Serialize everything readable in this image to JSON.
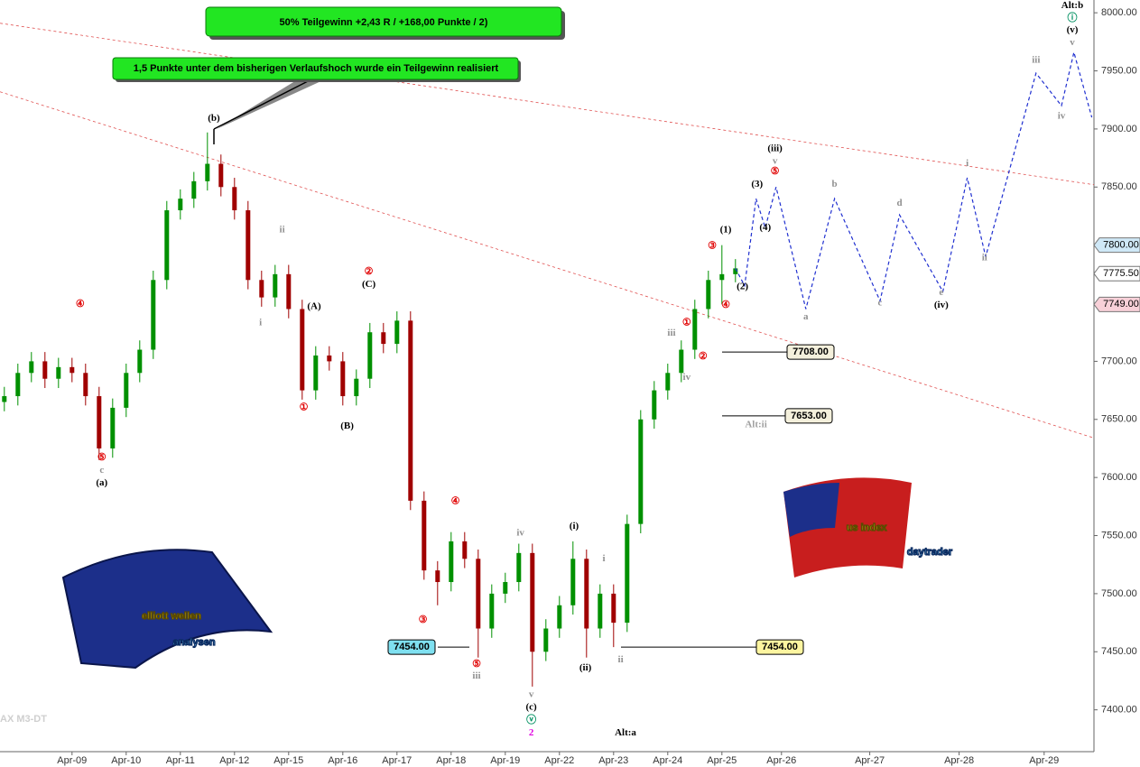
{
  "chart_data": {
    "type": "candlestick",
    "title": "50% Teilgewinn +2,43 R / +168,00 Punkte / 2)",
    "subtitle": "1,5 Punkte unter dem bisherigen Verlaufshoch wurde ein Teilgewinn realisiert",
    "watermark": "AX M3-DT",
    "logos": [
      {
        "lines": [
          "elliott wellen",
          "analysen"
        ]
      },
      {
        "lines": [
          "us index",
          "daytrader"
        ]
      }
    ],
    "xlim": [
      -1.33,
      18.87
    ],
    "xticks": [
      {
        "value": 0,
        "label": "Apr-09"
      },
      {
        "value": 1,
        "label": "Apr-10"
      },
      {
        "value": 2,
        "label": "Apr-11"
      },
      {
        "value": 3,
        "label": "Apr-12"
      },
      {
        "value": 4,
        "label": "Apr-15"
      },
      {
        "value": 5,
        "label": "Apr-16"
      },
      {
        "value": 6,
        "label": "Apr-17"
      },
      {
        "value": 7,
        "label": "Apr-18"
      },
      {
        "value": 8,
        "label": "Apr-19"
      },
      {
        "value": 9,
        "label": "Apr-22"
      },
      {
        "value": 10,
        "label": "Apr-23"
      },
      {
        "value": 11,
        "label": "Apr-24"
      },
      {
        "value": 12,
        "label": "Apr-25"
      },
      {
        "value": 13.1,
        "label": "Apr-26"
      },
      {
        "value": 14.73,
        "label": "Apr-27"
      },
      {
        "value": 16.38,
        "label": "Apr-28"
      },
      {
        "value": 17.95,
        "label": "Apr-29"
      }
    ],
    "ylim": [
      7364,
      8011
    ],
    "yticks": [
      {
        "value": 7400,
        "label": "7400.00"
      },
      {
        "value": 7450,
        "label": "7450.00"
      },
      {
        "value": 7500,
        "label": "7500.00"
      },
      {
        "value": 7550,
        "label": "7550.00"
      },
      {
        "value": 7600,
        "label": "7600.00"
      },
      {
        "value": 7650,
        "label": "7650.00"
      },
      {
        "value": 7700,
        "label": "7700.00"
      },
      {
        "value": 7750,
        "label": "7750.00"
      },
      {
        "value": 7800,
        "label": "7800.00"
      },
      {
        "value": 7850,
        "label": "7850.00"
      },
      {
        "value": 7900,
        "label": "7900.00"
      },
      {
        "value": 7950,
        "label": "7950.00"
      },
      {
        "value": 8000,
        "label": "8000.00"
      }
    ],
    "candles": {
      "up_color": "#009000",
      "down_color": "#a00000",
      "x": [
        -1.25,
        -1,
        -0.75,
        -0.5,
        -0.25,
        0,
        0.25,
        0.5,
        0.75,
        1,
        1.25,
        1.5,
        1.75,
        2,
        2.25,
        2.5,
        2.75,
        3,
        3.25,
        3.5,
        3.75,
        4,
        4.25,
        4.5,
        4.75,
        5,
        5.25,
        5.5,
        5.75,
        6,
        6.25,
        6.5,
        6.75,
        7,
        7.25,
        7.5,
        7.75,
        8,
        8.25,
        8.5,
        8.75,
        9,
        9.25,
        9.5,
        9.75,
        10,
        10.25,
        10.5,
        10.75,
        11,
        11.25,
        11.5,
        11.75,
        12,
        12.25
      ],
      "open": [
        7665,
        7670,
        7690,
        7700,
        7685,
        7695,
        7690,
        7670,
        7625,
        7660,
        7690,
        7710,
        7770,
        7830,
        7840,
        7855,
        7870,
        7850,
        7830,
        7770,
        7755,
        7775,
        7745,
        7675,
        7705,
        7700,
        7670,
        7685,
        7725,
        7715,
        7735,
        7580,
        7520,
        7510,
        7545,
        7530,
        7470,
        7500,
        7510,
        7535,
        7450,
        7470,
        7490,
        7530,
        7470,
        7500,
        7475,
        7560,
        7650,
        7675,
        7690,
        7710,
        7745,
        7770,
        7775
      ],
      "high": [
        7678,
        7698,
        7708,
        7708,
        7703,
        7703,
        7698,
        7678,
        7668,
        7698,
        7718,
        7778,
        7838,
        7848,
        7863,
        7897,
        7878,
        7858,
        7838,
        7778,
        7783,
        7783,
        7753,
        7713,
        7713,
        7708,
        7693,
        7733,
        7733,
        7743,
        7743,
        7588,
        7528,
        7553,
        7553,
        7538,
        7508,
        7518,
        7543,
        7543,
        7478,
        7498,
        7545,
        7538,
        7508,
        7508,
        7568,
        7658,
        7683,
        7698,
        7718,
        7753,
        7778,
        7800,
        7788
      ],
      "low": [
        7657,
        7662,
        7682,
        7677,
        7677,
        7682,
        7662,
        7615,
        7617,
        7652,
        7682,
        7702,
        7762,
        7822,
        7832,
        7847,
        7842,
        7822,
        7762,
        7747,
        7747,
        7737,
        7667,
        7667,
        7692,
        7662,
        7662,
        7677,
        7707,
        7707,
        7572,
        7512,
        7490,
        7502,
        7522,
        7445,
        7462,
        7492,
        7502,
        7420,
        7442,
        7462,
        7482,
        7445,
        7462,
        7454,
        7467,
        7552,
        7642,
        7667,
        7682,
        7702,
        7737,
        7749,
        7768
      ],
      "close": [
        7670,
        7690,
        7700,
        7685,
        7695,
        7690,
        7670,
        7625,
        7660,
        7690,
        7710,
        7770,
        7830,
        7840,
        7855,
        7870,
        7850,
        7830,
        7770,
        7755,
        7775,
        7745,
        7675,
        7705,
        7700,
        7670,
        7685,
        7725,
        7715,
        7735,
        7580,
        7520,
        7510,
        7545,
        7530,
        7470,
        7500,
        7510,
        7535,
        7450,
        7470,
        7490,
        7530,
        7470,
        7500,
        7475,
        7560,
        7650,
        7675,
        7690,
        7710,
        7745,
        7770,
        7775,
        7780
      ]
    },
    "projection": {
      "color": "#2030d0",
      "x": [
        12.25,
        12.42,
        12.63,
        12.8,
        13.0,
        13.55,
        14.08,
        14.92,
        15.28,
        16.08,
        16.53,
        16.87,
        17.8,
        18.27,
        18.5,
        18.83
      ],
      "values": [
        7780,
        7765,
        7840,
        7815,
        7850,
        7745,
        7840,
        7752,
        7826,
        7760,
        7858,
        7790,
        7948,
        7920,
        7966,
        7910
      ]
    },
    "trendlines": [
      {
        "color": "#e05050",
        "x": [
          -1.33,
          18.87
        ],
        "values": [
          7991,
          7852
        ]
      },
      {
        "color": "#e05050",
        "x": [
          -1.33,
          18.87
        ],
        "values": [
          7932,
          7634
        ]
      }
    ],
    "levels": [
      {
        "value": 7800,
        "label": "7800.00",
        "color": "#cfe8f7"
      },
      {
        "value": 7775.5,
        "label": "7775.50",
        "color": "#ffffff"
      },
      {
        "value": 7749,
        "label": "7749.00",
        "color": "#f8d0d8"
      },
      {
        "value": 7708,
        "label": "7708.00",
        "color": "#f4f0dc"
      },
      {
        "value": 7653,
        "label": "7653.00",
        "color": "#f4f0dc"
      },
      {
        "value": 7454,
        "label": "7454.00",
        "color": "#7fe0f0"
      },
      {
        "value": 7454,
        "label": "7454.00",
        "color": "#fdf5a0"
      }
    ],
    "annotations": [
      {
        "text": "④",
        "x": 0.15,
        "y": 7749,
        "color": "#e00000"
      },
      {
        "text": "⑤",
        "x": 0.55,
        "y": 7617,
        "color": "#e00000"
      },
      {
        "text": "c",
        "x": 0.55,
        "y": 7606,
        "color": "#909090"
      },
      {
        "text": "(a)",
        "x": 0.55,
        "y": 7595,
        "color": "#000000"
      },
      {
        "text": "(b)",
        "x": 2.62,
        "y": 7909,
        "color": "#000000"
      },
      {
        "text": "ii",
        "x": 3.88,
        "y": 7813,
        "color": "#909090"
      },
      {
        "text": "i",
        "x": 3.48,
        "y": 7733,
        "color": "#909090"
      },
      {
        "text": "(A)",
        "x": 4.47,
        "y": 7747,
        "color": "#000000"
      },
      {
        "text": "②",
        "x": 5.48,
        "y": 7777,
        "color": "#e00000"
      },
      {
        "text": "(C)",
        "x": 5.48,
        "y": 7766,
        "color": "#000000"
      },
      {
        "text": "①",
        "x": 4.28,
        "y": 7660,
        "color": "#e00000"
      },
      {
        "text": "(B)",
        "x": 5.08,
        "y": 7644,
        "color": "#000000"
      },
      {
        "text": "④",
        "x": 7.08,
        "y": 7579,
        "color": "#e00000"
      },
      {
        "text": "③",
        "x": 6.48,
        "y": 7477,
        "color": "#e00000"
      },
      {
        "text": "⑤",
        "x": 7.47,
        "y": 7439,
        "color": "#e00000"
      },
      {
        "text": "iii",
        "x": 7.47,
        "y": 7429,
        "color": "#909090"
      },
      {
        "text": "iv",
        "x": 8.28,
        "y": 7552,
        "color": "#909090"
      },
      {
        "text": "v",
        "x": 8.48,
        "y": 7413,
        "color": "#909090"
      },
      {
        "text": "(c)",
        "x": 8.48,
        "y": 7402,
        "color": "#000000"
      },
      {
        "text": "ⓥ",
        "x": 8.48,
        "y": 7391,
        "color": "#009060"
      },
      {
        "text": "2",
        "x": 8.48,
        "y": 7380,
        "color": "#e000e0"
      },
      {
        "text": "(i)",
        "x": 9.27,
        "y": 7558,
        "color": "#000000"
      },
      {
        "text": "i",
        "x": 9.82,
        "y": 7530,
        "color": "#909090"
      },
      {
        "text": "(ii)",
        "x": 9.48,
        "y": 7436,
        "color": "#000000"
      },
      {
        "text": "ii",
        "x": 10.13,
        "y": 7443,
        "color": "#909090"
      },
      {
        "text": "Alt:a",
        "x": 10.22,
        "y": 7380,
        "color": "#000000"
      },
      {
        "text": "iii",
        "x": 11.07,
        "y": 7724,
        "color": "#909090"
      },
      {
        "text": "①",
        "x": 11.35,
        "y": 7733,
        "color": "#e00000"
      },
      {
        "text": "②",
        "x": 11.65,
        "y": 7704,
        "color": "#e00000"
      },
      {
        "text": "iv",
        "x": 11.35,
        "y": 7686,
        "color": "#909090"
      },
      {
        "text": "③",
        "x": 11.82,
        "y": 7799,
        "color": "#e00000"
      },
      {
        "text": "(1)",
        "x": 12.07,
        "y": 7813,
        "color": "#000000"
      },
      {
        "text": "(2)",
        "x": 12.38,
        "y": 7764,
        "color": "#000000"
      },
      {
        "text": "④",
        "x": 12.07,
        "y": 7748,
        "color": "#e00000"
      },
      {
        "text": "(3)",
        "x": 12.65,
        "y": 7852,
        "color": "#000000"
      },
      {
        "text": "(4)",
        "x": 12.8,
        "y": 7815,
        "color": "#000000"
      },
      {
        "text": "⑤",
        "x": 12.98,
        "y": 7863,
        "color": "#e00000"
      },
      {
        "text": "v",
        "x": 12.98,
        "y": 7872,
        "color": "#909090"
      },
      {
        "text": "(iii)",
        "x": 12.98,
        "y": 7883,
        "color": "#000000"
      },
      {
        "text": "a",
        "x": 13.55,
        "y": 7738,
        "color": "#909090"
      },
      {
        "text": "b",
        "x": 14.08,
        "y": 7852,
        "color": "#909090"
      },
      {
        "text": "c",
        "x": 14.92,
        "y": 7750,
        "color": "#909090"
      },
      {
        "text": "d",
        "x": 15.28,
        "y": 7836,
        "color": "#909090"
      },
      {
        "text": "e",
        "x": 16.05,
        "y": 7759,
        "color": "#909090"
      },
      {
        "text": "(iv)",
        "x": 16.05,
        "y": 7748,
        "color": "#000000"
      },
      {
        "text": "i",
        "x": 16.53,
        "y": 7870,
        "color": "#909090"
      },
      {
        "text": "ii",
        "x": 16.85,
        "y": 7789,
        "color": "#909090"
      },
      {
        "text": "iii",
        "x": 17.8,
        "y": 7959,
        "color": "#909090"
      },
      {
        "text": "iv",
        "x": 18.27,
        "y": 7911,
        "color": "#909090"
      },
      {
        "text": "v",
        "x": 18.47,
        "y": 7974,
        "color": "#909090"
      },
      {
        "text": "(v)",
        "x": 18.47,
        "y": 7985,
        "color": "#000000"
      },
      {
        "text": "ⓘ",
        "x": 18.47,
        "y": 7995,
        "color": "#009060"
      },
      {
        "text": "Alt:b",
        "x": 18.47,
        "y": 8006,
        "color": "#000000"
      },
      {
        "text": "Alt:ii",
        "x": 12.63,
        "y": 7645,
        "color": "#a0a0a0"
      }
    ]
  }
}
